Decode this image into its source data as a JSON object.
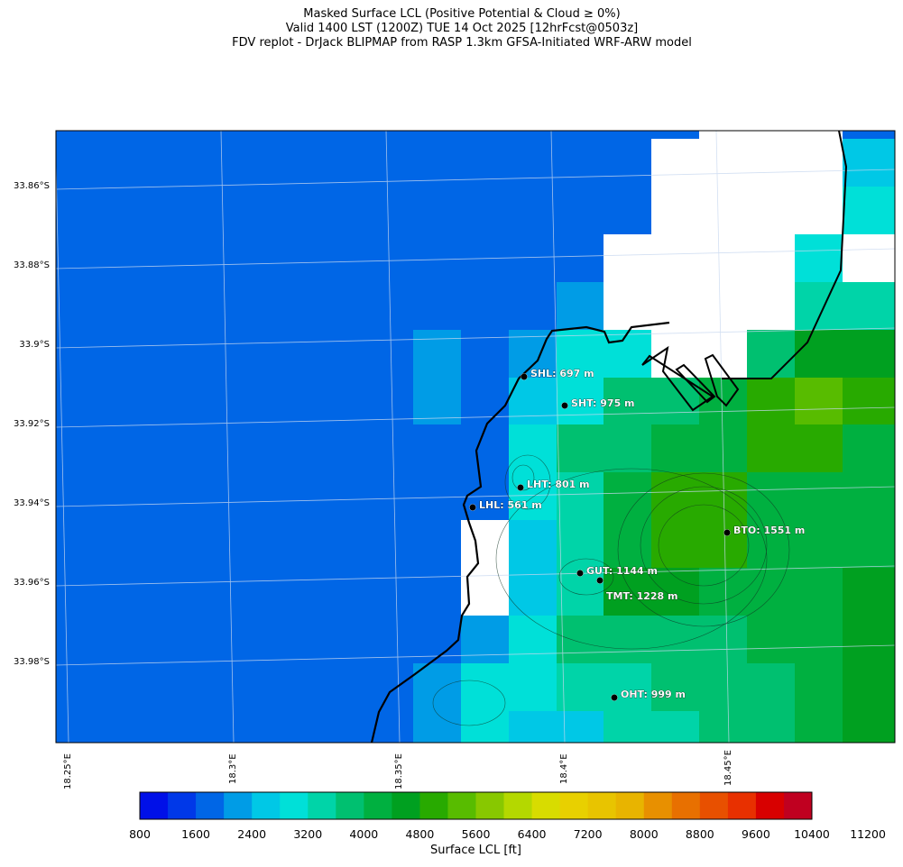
{
  "title": {
    "line1": "Masked Surface LCL (Positive Potential & Cloud ≥ 0%)",
    "line2": "Valid 1400 LST (1200Z) TUE 14 Oct 2025 [12hrFcst@0503z]",
    "line3": "FDV replot - DrJack BLIPMAP from RASP 1.3km GFSA-Initiated WRF-ARW model"
  },
  "lat_labels": [
    "33.86°S",
    "33.88°S",
    "33.9°S",
    "33.92°S",
    "33.94°S",
    "33.96°S",
    "33.98°S"
  ],
  "lon_labels": [
    "18.25°E",
    "18.3°E",
    "18.35°E",
    "18.4°E",
    "18.45°E"
  ],
  "stations": [
    {
      "label": "SHL: 697 m"
    },
    {
      "label": "SHT: 975 m"
    },
    {
      "label": "LHT: 801 m"
    },
    {
      "label": "LHL: 561 m"
    },
    {
      "label": "BTO: 1551 m"
    },
    {
      "label": "GUT: 1144 m"
    },
    {
      "label": "TMT: 1228 m"
    },
    {
      "label": "OHT: 999 m"
    }
  ],
  "colorbar": {
    "label": "Surface LCL [ft]",
    "ticks": [
      "800",
      "1600",
      "2400",
      "3200",
      "4000",
      "4800",
      "5600",
      "6400",
      "7200",
      "8000",
      "8800",
      "9600",
      "10400",
      "11200"
    ],
    "colors": [
      "#0010e8",
      "#0038e8",
      "#0066e6",
      "#009ce6",
      "#00c8e6",
      "#00e0d8",
      "#00d4a8",
      "#00c070",
      "#00b040",
      "#00a020",
      "#28aa00",
      "#58bc00",
      "#88c800",
      "#b4d800",
      "#d8dc00",
      "#e8d000",
      "#e8c400",
      "#e8b400",
      "#e89000",
      "#e87000",
      "#e85000",
      "#e83000",
      "#d80000",
      "#c00020"
    ]
  }
}
